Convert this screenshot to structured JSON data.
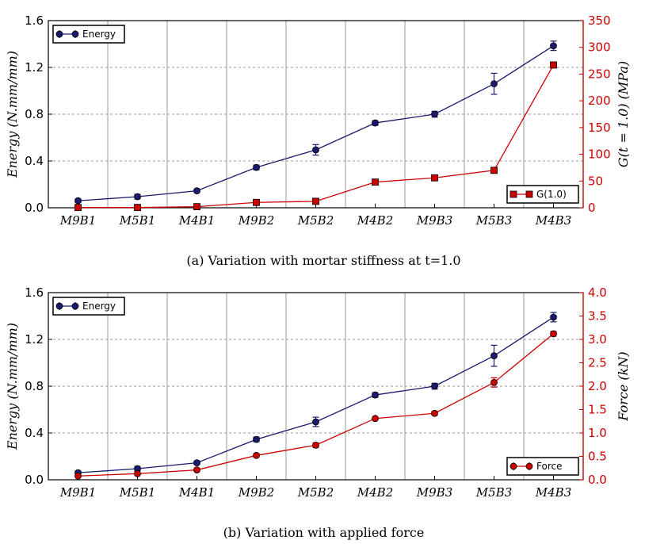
{
  "colors": {
    "energy": "#1a1a6e",
    "secondary": "#cc0000",
    "grid": "#999999"
  },
  "chart_data": [
    {
      "type": "line",
      "caption": "(a)  Variation with mortar stiffness at t=1.0",
      "categories": [
        "M9B1",
        "M5B1",
        "M4B1",
        "M9B2",
        "M5B2",
        "M4B2",
        "M9B3",
        "M5B3",
        "M4B3"
      ],
      "ylabel_left": "Energy (N.mm/mm)",
      "ylabel_right": "G(t = 1.0) (MPa)",
      "ylim_left": [
        0,
        1.6
      ],
      "yticks_left": [
        "0.0",
        "0.4",
        "0.8",
        "1.2",
        "1.6"
      ],
      "ylim_right": [
        0,
        350
      ],
      "yticks_right": [
        "0",
        "50",
        "100",
        "150",
        "200",
        "250",
        "300",
        "350"
      ],
      "series": [
        {
          "name": "Energy",
          "axis": "left",
          "marker": "circle",
          "values": [
            0.06,
            0.095,
            0.145,
            0.345,
            0.495,
            0.725,
            0.8,
            1.06,
            1.385
          ],
          "errors": [
            0.015,
            0.02,
            0.015,
            0.02,
            0.045,
            0.02,
            0.025,
            0.09,
            0.04
          ]
        },
        {
          "name": "G(1.0)",
          "axis": "right",
          "marker": "square",
          "values": [
            0.5,
            0.5,
            2,
            10,
            12,
            48,
            56,
            70,
            267
          ]
        }
      ],
      "legend_left": "Energy",
      "legend_right": "G(1.0)"
    },
    {
      "type": "line",
      "caption": "(b)  Variation with applied force",
      "categories": [
        "M9B1",
        "M5B1",
        "M4B1",
        "M9B2",
        "M5B2",
        "M4B2",
        "M9B3",
        "M5B3",
        "M4B3"
      ],
      "ylabel_left": "Energy (N.mm/mm)",
      "ylabel_right": "Force (kN)",
      "ylim_left": [
        0,
        1.6
      ],
      "yticks_left": [
        "0.0",
        "0.4",
        "0.8",
        "1.2",
        "1.6"
      ],
      "ylim_right": [
        0,
        4.0
      ],
      "yticks_right": [
        "0.0",
        "0.5",
        "1.0",
        "1.5",
        "2.0",
        "2.5",
        "3.0",
        "3.5",
        "4.0"
      ],
      "series": [
        {
          "name": "Energy",
          "axis": "left",
          "marker": "circle",
          "values": [
            0.06,
            0.095,
            0.145,
            0.345,
            0.495,
            0.725,
            0.8,
            1.06,
            1.39
          ],
          "errors": [
            0.015,
            0.02,
            0.015,
            0.02,
            0.04,
            0.02,
            0.025,
            0.09,
            0.04
          ]
        },
        {
          "name": "Force",
          "axis": "right",
          "marker": "circle",
          "values": [
            0.08,
            0.13,
            0.21,
            0.52,
            0.74,
            1.31,
            1.42,
            2.08,
            3.12
          ],
          "errors": [
            0.03,
            0.03,
            0.03,
            0.04,
            0.05,
            0.03,
            0.04,
            0.1,
            0.05
          ]
        }
      ],
      "legend_left": "Energy",
      "legend_right": "Force"
    }
  ]
}
